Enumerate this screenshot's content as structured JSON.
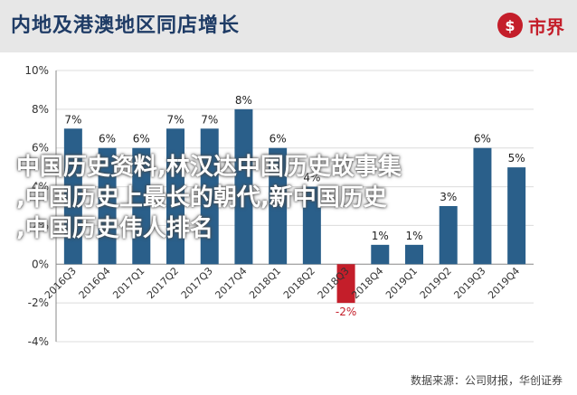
{
  "header": {
    "title": "内地及港澳地区同店增长",
    "logo_text": "市界",
    "logo_mark": "$",
    "accent": "#c41e2a"
  },
  "chart_data": {
    "type": "bar",
    "title": "内地及港澳地区同店增长",
    "categories": [
      "2016Q3",
      "2016Q4",
      "2017Q1",
      "2017Q2",
      "2017Q3",
      "2017Q4",
      "2018Q1",
      "2018Q2",
      "2018Q3",
      "2018Q4",
      "2019Q1",
      "2019Q2",
      "2019Q3",
      "2019Q4"
    ],
    "values": [
      7,
      6,
      6,
      7,
      7,
      8,
      6,
      4,
      -2,
      1,
      1,
      3,
      6,
      5
    ],
    "value_labels": [
      "7%",
      "6%",
      "6%",
      "7%",
      "7%",
      "8%",
      "6%",
      "4%",
      "-2%",
      "1%",
      "1%",
      "3%",
      "6%",
      "5%"
    ],
    "ylim": [
      -4,
      10
    ],
    "yticks": [
      "-4%",
      "-2%",
      "0%",
      "2%",
      "4%",
      "6%",
      "8%",
      "10%"
    ],
    "ytick_values": [
      -4,
      -2,
      0,
      2,
      4,
      6,
      8,
      10
    ],
    "bar_color": "#2a5f8a",
    "negative_color": "#c41e2a",
    "grid": true
  },
  "source_text": "数据来源：公司财报，华创证券",
  "overlay": {
    "line1": "中国历史资料,林汉达中国历史故事集",
    "line2": ",中国历史上最长的朝代,新中国历史",
    "line3": ",中国历史伟人排名"
  }
}
